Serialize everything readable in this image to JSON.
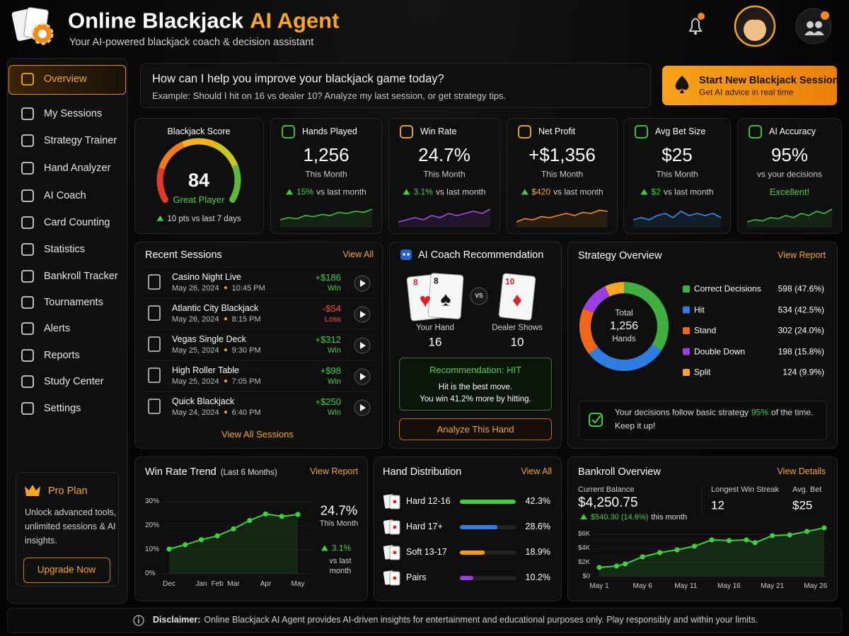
{
  "header": {
    "title": "Online Blackjack",
    "title_accent": "AI Agent",
    "subtitle": "Your AI-powered blackjack coach & decision assistant"
  },
  "nav": {
    "items": [
      "Overview",
      "My Sessions",
      "Strategy Trainer",
      "Hand Analyzer",
      "AI Coach",
      "Card Counting",
      "Statistics",
      "Bankroll Tracker",
      "Tournaments",
      "Alerts",
      "Reports",
      "Study Center",
      "Settings"
    ]
  },
  "pro_plan": {
    "title": "Pro Plan",
    "text": "Unlock advanced tools, unlimited sessions & AI insights.",
    "button": "Upgrade Now"
  },
  "prompt": {
    "question": "How can I help you improve your blackjack game today?",
    "example": "Example: Should I hit on 16 vs dealer 10? Analyze my last session, or get strategy tips."
  },
  "cta": {
    "title": "Start New Blackjack Session",
    "subtitle": "Get AI advice in real time"
  },
  "score": {
    "label": "Blackjack Score",
    "value": "84",
    "rating": "Great Player",
    "change": "10 pts vs last 7 days"
  },
  "spark_ylim": [
    0,
    10
  ],
  "stats": [
    {
      "label": "Hands Played",
      "value": "1,256",
      "period": "This Month",
      "change": "15%",
      "change_text": "vs last month",
      "change_color": "#3fcf3f",
      "color": "#3fbf3f",
      "spark": [
        3,
        4,
        3.5,
        5,
        4.5,
        5.5,
        5,
        6.5,
        6,
        7,
        6.5,
        8
      ]
    },
    {
      "label": "Win Rate",
      "value": "24.7%",
      "period": "This Month",
      "change": "3.1%",
      "change_text": "vs last month",
      "change_color": "#3fcf3f",
      "color": "#a24ce6",
      "spark": [
        2,
        3,
        4,
        3,
        5,
        4,
        6,
        5,
        6,
        7,
        6,
        8
      ]
    },
    {
      "label": "Net Profit",
      "value": "+$1,356",
      "period": "This Month",
      "change": "$420",
      "change_text": "vs last month",
      "change_color": "#f5a623",
      "color": "#f08a1c",
      "spark": [
        2,
        3.5,
        3,
        4.5,
        4,
        5,
        6,
        5,
        6.5,
        6,
        7.5,
        7
      ]
    },
    {
      "label": "Avg Bet Size",
      "value": "$25",
      "period": "This Month",
      "change": "$2",
      "change_text": "vs last month",
      "change_color": "#3fcf3f",
      "color": "#3a8ee6",
      "spark": [
        3,
        4,
        3,
        5,
        6,
        4,
        7,
        5,
        6,
        5,
        6,
        4
      ]
    },
    {
      "label": "AI Accuracy",
      "value": "95%",
      "period": "vs your decisions",
      "note": "Excellent!",
      "color": "#3fbf3f",
      "spark": [
        2,
        3,
        2.5,
        4,
        3.5,
        5,
        4,
        6,
        5,
        7,
        6,
        8
      ]
    }
  ],
  "sessions": {
    "title": "Recent Sessions",
    "link": "View All",
    "footer": "View All Sessions",
    "items": [
      {
        "name": "Casino Night Live",
        "date": "May 26, 2024",
        "time": "10:45 PM",
        "amount": "+$186",
        "result": "Win",
        "color": "#3fcf3f"
      },
      {
        "name": "Atlantic City Blackjack",
        "date": "May 26, 2024",
        "time": "8:15 PM",
        "amount": "-$54",
        "result": "Loss",
        "color": "#ff4a3d"
      },
      {
        "name": "Vegas Single Deck",
        "date": "May 25, 2024",
        "time": "9:30 PM",
        "amount": "+$312",
        "result": "Win",
        "color": "#3fcf3f"
      },
      {
        "name": "High Roller Table",
        "date": "May 25, 2024",
        "time": "7:05 PM",
        "amount": "+$98",
        "result": "Win",
        "color": "#3fcf3f"
      },
      {
        "name": "Quick Blackjack",
        "date": "May 24, 2024",
        "time": "6:40 PM",
        "amount": "+$250",
        "result": "Win",
        "color": "#3fcf3f"
      }
    ]
  },
  "coach": {
    "title": "AI Coach Recommendation",
    "player_cards": [
      {
        "rank": "8",
        "suit": "♥",
        "color": "#d8232a"
      },
      {
        "rank": "8",
        "suit": "♠",
        "color": "#111111"
      }
    ],
    "dealer_card": {
      "rank": "10",
      "suit": "♦",
      "color": "#d8232a"
    },
    "vs": "vs",
    "your_hand_label": "Your Hand",
    "your_hand": "16",
    "dealer_label": "Dealer Shows",
    "dealer": "10",
    "recommendation": "Recommendation: HIT",
    "detail": [
      "Hit is the best move.",
      "You win 41.2% more by hitting."
    ],
    "button": "Analyze This Hand"
  },
  "strategy": {
    "title": "Strategy Overview",
    "link": "View Report",
    "center": [
      "Total",
      "1,256",
      "Hands"
    ],
    "items": [
      {
        "name": "Correct Decisions",
        "value": 598,
        "label": "598 (47.6%)",
        "color": "#3fb03f"
      },
      {
        "name": "Hit",
        "value": 534,
        "label": "534 (42.5%)",
        "color": "#2f7de1"
      },
      {
        "name": "Stand",
        "value": 302,
        "label": "302 (24.0%)",
        "color": "#f0671c"
      },
      {
        "name": "Double Down",
        "value": 198,
        "label": "198 (15.8%)",
        "color": "#9b3fe0"
      },
      {
        "name": "Split",
        "value": 124,
        "label": "124 (9.9%)",
        "color": "#f5a623"
      }
    ],
    "note": "Your decisions follow basic strategy",
    "note_pct": "95%",
    "note_end": "of the time.",
    "note_line2": "Keep it up!"
  },
  "win_trend": {
    "type": "line",
    "title": "Win Rate Trend",
    "subtitle": "(Last 6 Months)",
    "link": "View Report",
    "color": "#3fcf3f",
    "categories": [
      "Dec",
      null,
      "Jan",
      "Feb",
      "Mar",
      null,
      "Apr",
      null,
      "May"
    ],
    "values": [
      10.3,
      12.1,
      14.2,
      15.8,
      18.7,
      22.2,
      24.9,
      23.9,
      24.7
    ],
    "ylim": [
      0,
      30
    ],
    "yticks": [
      {
        "value": 0,
        "label": "0%"
      },
      {
        "value": 10,
        "label": "10%"
      },
      {
        "value": 20,
        "label": "20%"
      },
      {
        "value": 30,
        "label": "30%"
      }
    ],
    "summary": "24.7%",
    "summary_label": "This Month",
    "change": "3.1%",
    "change_text": "vs last month"
  },
  "hand_distribution": {
    "type": "bar",
    "title": "Hand Distribution",
    "link": "View All",
    "xlim": [
      0,
      43
    ],
    "items": [
      {
        "name": "Hard 12-16",
        "value": 42.3,
        "label": "42.3%",
        "color": "#3fcf3f"
      },
      {
        "name": "Hard 17+",
        "value": 28.6,
        "label": "28.6%",
        "color": "#2f7de1"
      },
      {
        "name": "Soft 13-17",
        "value": 18.9,
        "label": "18.9%",
        "color": "#f59a1c"
      },
      {
        "name": "Pairs",
        "value": 10.2,
        "label": "10.2%",
        "color": "#9b3fe0"
      }
    ]
  },
  "bankroll": {
    "title": "Bankroll Overview",
    "link": "View Details",
    "balance_label": "Current Balance",
    "balance": "$4,250.75",
    "change": "$540.30 (14.6%)",
    "change_text": "this month",
    "streak_label": "Longest Win Streak",
    "streak": "12",
    "avg_label": "Avg. Bet",
    "avg": "$25",
    "chart": {
      "type": "line",
      "color": "#3fcf3f",
      "x": [
        1,
        3,
        4,
        6,
        8,
        10,
        12,
        14,
        16,
        18,
        19,
        21,
        23,
        25,
        27
      ],
      "values": [
        1300,
        1500,
        1800,
        2800,
        3400,
        3800,
        4300,
        5200,
        5100,
        5200,
        4800,
        5800,
        5900,
        6400,
        6900
      ],
      "xlim": [
        1,
        27
      ],
      "xticks": [
        {
          "value": 1,
          "label": "May 1"
        },
        {
          "value": 6,
          "label": "May 6"
        },
        {
          "value": 11,
          "label": "May 11"
        },
        {
          "value": 16,
          "label": "May 16"
        },
        {
          "value": 21,
          "label": "May 21"
        },
        {
          "value": 26,
          "label": "May 26"
        }
      ],
      "ylim": [
        0,
        7000
      ],
      "yticks": [
        {
          "value": 0,
          "label": "$0"
        },
        {
          "value": 2000,
          "label": "$2K"
        },
        {
          "value": 4000,
          "label": "$4K"
        },
        {
          "value": 6000,
          "label": "$6K"
        }
      ]
    }
  },
  "disclaimer": {
    "label": "Disclaimer:",
    "text": "Online Blackjack AI Agent provides AI-driven insights for entertainment and educational purposes only. Play responsibly and within your limits."
  }
}
